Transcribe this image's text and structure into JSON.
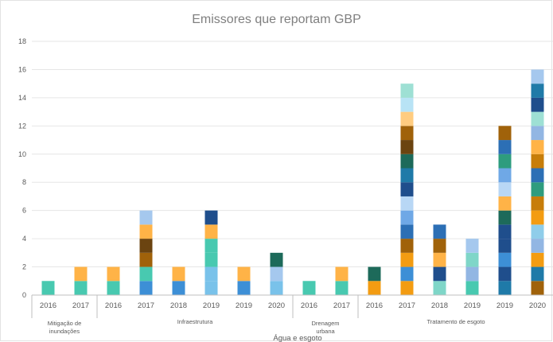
{
  "chart_data": {
    "type": "bar",
    "stacked": true,
    "title": "Emissores que reportam GBP",
    "xlabel": "Água e esgoto",
    "ylabel": "",
    "ylim": [
      0,
      18
    ],
    "yticks": [
      0,
      2,
      4,
      6,
      8,
      10,
      12,
      14,
      16,
      18
    ],
    "grid": true,
    "legend": "none",
    "groups": [
      {
        "label": "Mitigação de inundações",
        "lines": [
          "Mitigação de",
          "inundações"
        ],
        "bars": [
          {
            "x": "2016",
            "segments": [
              "#48c9b0"
            ]
          },
          {
            "x": "2017",
            "segments": [
              "#48c9b0",
              "#ffb347"
            ]
          }
        ]
      },
      {
        "label": "Infraestrutura",
        "lines": [
          "Infraestrutura"
        ],
        "bars": [
          {
            "x": "2016",
            "segments": [
              "#48c9b0",
              "#ffb347"
            ]
          },
          {
            "x": "2017",
            "segments": [
              "#3d8fd6",
              "#48c9b0",
              "#a0620a",
              "#6b4410",
              "#ffb347",
              "#a5c8ee"
            ]
          },
          {
            "x": "2018",
            "segments": [
              "#3d8fd6",
              "#ffb347"
            ]
          },
          {
            "x": "2019",
            "segments": [
              "#79c2ea",
              "#79c2ea",
              "#48c9b0",
              "#48c9b0",
              "#ffb347",
              "#1f4e8c"
            ]
          },
          {
            "x": "2019",
            "segments": [
              "#3d8fd6",
              "#ffb347"
            ]
          },
          {
            "x": "2020",
            "segments": [
              "#79c2ea",
              "#a5c8ee",
              "#1d6a5a"
            ]
          }
        ]
      },
      {
        "label": "Drenagem urbana",
        "lines": [
          "Drenagem",
          "urbana"
        ],
        "bars": [
          {
            "x": "2016",
            "segments": [
              "#48c9b0"
            ]
          },
          {
            "x": "2017",
            "segments": [
              "#48c9b0",
              "#ffb347"
            ]
          }
        ]
      },
      {
        "label": "Tratamento de esgoto",
        "lines": [
          "Tratamento de esgoto"
        ],
        "bars": [
          {
            "x": "2016",
            "segments": [
              "#f39c12",
              "#1d6a5a"
            ]
          },
          {
            "x": "2017",
            "segments": [
              "#f39c12",
              "#3d8fd6",
              "#f39c12",
              "#a0620a",
              "#2c6fb5",
              "#6fa8e6",
              "#b8d7f5",
              "#1f4e8c",
              "#1f7aa8",
              "#1d6a5a",
              "#6b4410",
              "#a0620a",
              "#ffcc80",
              "#b8e3f5",
              "#9ee0d4"
            ]
          },
          {
            "x": "2018",
            "segments": [
              "#7fd6c8",
              "#1f4e8c",
              "#ffb347",
              "#a0620a",
              "#2c6fb5"
            ]
          },
          {
            "x": "2019",
            "segments": [
              "#48c9b0",
              "#92b6e3",
              "#7fd6c8",
              "#a5c8ee"
            ]
          },
          {
            "x": "2019",
            "segments": [
              "#1f7aa8",
              "#1f4e8c",
              "#3d8fd6",
              "#1f4e8c",
              "#1f4e8c",
              "#1d6a5a",
              "#ffb347",
              "#b8d7f5",
              "#6fa8e6",
              "#2e9c7e",
              "#2c6fb5",
              "#a0620a"
            ]
          },
          {
            "x": "2020",
            "segments": [
              "#a0620a",
              "#1f7aa8",
              "#f39c12",
              "#92b6e3",
              "#8fcdea",
              "#f39c12",
              "#c77d0a",
              "#2e9c7e",
              "#2c6fb5",
              "#c77d0a",
              "#ffb347",
              "#92b6e3",
              "#9ee0d4",
              "#1f4e8c",
              "#1f7aa8",
              "#a5c8ee"
            ]
          }
        ]
      }
    ]
  }
}
